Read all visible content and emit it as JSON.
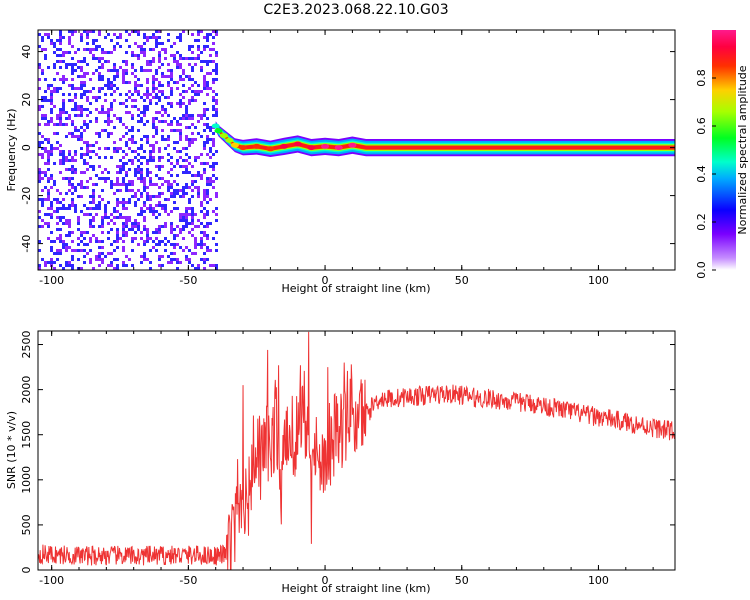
{
  "figure": {
    "title": "C2E3.2023.068.22.10.G03"
  },
  "colors": {
    "snr_line": "#ee3333",
    "spectral_peak": "#ff1a1a",
    "noise_speckle": "#6a1fd6",
    "frame": "#000000"
  },
  "colorbar": {
    "label": "Normalized spectral amplitude",
    "ticks": [
      "0.0",
      "0.2",
      "0.4",
      "0.6",
      "0.8"
    ],
    "tick_values": [
      0.0,
      0.2,
      0.4,
      0.6,
      0.8
    ],
    "range": [
      0,
      1
    ],
    "colormap": "gist_rainbow (white at zero)"
  },
  "chart_data": [
    {
      "type": "heatmap",
      "title": "",
      "xlabel": "Height of straight line (km)",
      "ylabel": "Frequency (Hz)",
      "xlim": [
        -105,
        128
      ],
      "ylim": [
        -51,
        49
      ],
      "x_ticks": [
        -100,
        -50,
        0,
        50,
        100
      ],
      "x_tick_labels": [
        "-100",
        "-50",
        "0",
        "50",
        "100"
      ],
      "y_ticks": [
        -40,
        -20,
        0,
        20,
        40
      ],
      "y_tick_labels": [
        "-40",
        "-20",
        "0",
        "20",
        "40"
      ],
      "noise_region_x": [
        -105,
        -40
      ],
      "noise_level": 0.2,
      "noise_fill": 0.33,
      "signal": {
        "frequency_hz": 0,
        "start_x": -40,
        "end_x": 128,
        "peak_amplitude": 1.0,
        "track": [
          {
            "x": -40,
            "y": 9,
            "amp": 0.45
          },
          {
            "x": -39,
            "y": 7,
            "amp": 0.55
          },
          {
            "x": -37,
            "y": 5,
            "amp": 0.6
          },
          {
            "x": -35,
            "y": 3,
            "amp": 0.65
          },
          {
            "x": -33,
            "y": 1,
            "amp": 0.7
          },
          {
            "x": -30,
            "y": 0,
            "amp": 0.8
          },
          {
            "x": -25,
            "y": 0.5,
            "amp": 0.85
          },
          {
            "x": -20,
            "y": -0.5,
            "amp": 0.85
          },
          {
            "x": -15,
            "y": 0.5,
            "amp": 0.9
          },
          {
            "x": -10,
            "y": 1.5,
            "amp": 0.9
          },
          {
            "x": -5,
            "y": 0,
            "amp": 0.9
          },
          {
            "x": 0,
            "y": 0.5,
            "amp": 0.95
          },
          {
            "x": 5,
            "y": 0,
            "amp": 0.95
          },
          {
            "x": 10,
            "y": 1,
            "amp": 0.95
          },
          {
            "x": 15,
            "y": 0,
            "amp": 1.0
          },
          {
            "x": 20,
            "y": 0,
            "amp": 1.0
          },
          {
            "x": 128,
            "y": 0,
            "amp": 1.0
          }
        ]
      }
    },
    {
      "type": "line",
      "title": "",
      "xlabel": "Height of straight line (km)",
      "ylabel": "SNR (10 * v/v)",
      "xlim": [
        -105,
        128
      ],
      "ylim": [
        0,
        2650
      ],
      "x_ticks": [
        -100,
        -50,
        0,
        50,
        100
      ],
      "x_tick_labels": [
        "-100",
        "-50",
        "0",
        "50",
        "100"
      ],
      "y_ticks": [
        0,
        500,
        1000,
        1500,
        2000,
        2500
      ],
      "y_tick_labels": [
        "0",
        "500",
        "1000",
        "1500",
        "2000",
        "2500"
      ],
      "series": [
        {
          "x": [
            -105,
            -100,
            -90,
            -80,
            -70,
            -60,
            -50,
            -40,
            -36,
            -34,
            -32,
            -30,
            -28,
            -26,
            -24,
            -22,
            -20,
            -18,
            -16,
            -14,
            -12,
            -10,
            -8,
            -6,
            -4,
            -2,
            0,
            2,
            4,
            6,
            8,
            10,
            12,
            14,
            16,
            18,
            20,
            25,
            30,
            35,
            40,
            45,
            50,
            55,
            60,
            65,
            70,
            75,
            80,
            85,
            90,
            95,
            100,
            105,
            110,
            115,
            120,
            125,
            128
          ],
          "y": [
            180,
            170,
            160,
            160,
            155,
            160,
            165,
            160,
            180,
            350,
            600,
            900,
            800,
            1300,
            1100,
            1500,
            1250,
            1650,
            900,
            1500,
            1350,
            1600,
            1950,
            1250,
            1550,
            1100,
            1300,
            1400,
            1650,
            1500,
            1700,
            1850,
            1550,
            1800,
            1750,
            1850,
            1900,
            1900,
            1920,
            1930,
            1950,
            1950,
            1940,
            1910,
            1900,
            1880,
            1860,
            1850,
            1820,
            1790,
            1760,
            1720,
            1700,
            1670,
            1640,
            1610,
            1580,
            1550,
            1540
          ],
          "spikes": [
            {
              "x": -32,
              "y": 1230
            },
            {
              "x": -30,
              "y": 2050
            },
            {
              "x": -26,
              "y": 1180
            },
            {
              "x": -24,
              "y": 1710
            },
            {
              "x": -21,
              "y": 2440
            },
            {
              "x": -17,
              "y": 2270
            },
            {
              "x": -12,
              "y": 1930
            },
            {
              "x": -9,
              "y": 2270
            },
            {
              "x": -6,
              "y": 2640
            },
            {
              "x": -5,
              "y": 290
            },
            {
              "x": 1,
              "y": 2250
            },
            {
              "x": 7,
              "y": 2300
            }
          ],
          "noise_amplitude": 110
        }
      ]
    }
  ]
}
